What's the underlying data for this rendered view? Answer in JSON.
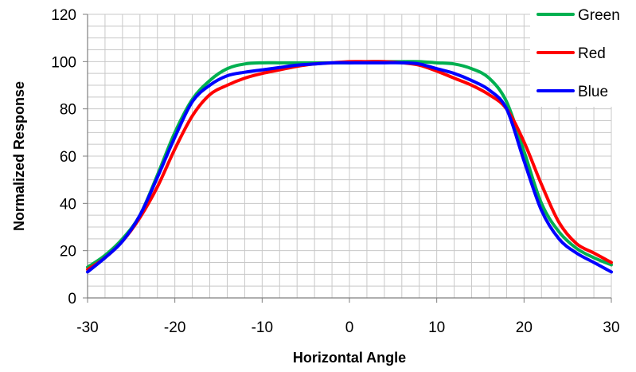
{
  "chart_data": {
    "type": "line",
    "title": "",
    "xlabel": "Horizontal Angle",
    "ylabel": "Normalized Response",
    "xlim": [
      -30,
      30
    ],
    "ylim": [
      0,
      120
    ],
    "xticks": [
      -30,
      -20,
      -10,
      0,
      10,
      20,
      30
    ],
    "yticks": [
      0,
      20,
      40,
      60,
      80,
      100,
      120
    ],
    "grid": true,
    "legend": "top-right",
    "series": [
      {
        "name": "Green",
        "color": "#00b050",
        "x": [
          -30,
          -28,
          -26,
          -24,
          -22,
          -20,
          -18,
          -16,
          -14,
          -12,
          -10,
          -8,
          -6,
          -4,
          -2,
          0,
          2,
          4,
          6,
          8,
          10,
          12,
          14,
          16,
          18,
          20,
          22,
          24,
          26,
          28,
          30
        ],
        "y": [
          13,
          18,
          25,
          35,
          52,
          70,
          84,
          92,
          97,
          99,
          99.5,
          99.5,
          99.5,
          99.5,
          99.5,
          99.5,
          100,
          100,
          100,
          100,
          99.5,
          99,
          97,
          93,
          83,
          62,
          40,
          28,
          21,
          17,
          14
        ]
      },
      {
        "name": "Red",
        "color": "#ff0000",
        "x": [
          -30,
          -28,
          -26,
          -24,
          -22,
          -20,
          -18,
          -16,
          -14,
          -12,
          -10,
          -8,
          -6,
          -4,
          -2,
          0,
          2,
          4,
          6,
          8,
          10,
          12,
          14,
          16,
          18,
          20,
          22,
          24,
          26,
          28,
          30
        ],
        "y": [
          12,
          17,
          24,
          34,
          47,
          63,
          77,
          86,
          90,
          93,
          95,
          96.5,
          98,
          99,
          99.5,
          100,
          100,
          100,
          99.5,
          98.5,
          96,
          93,
          90,
          86,
          80,
          66,
          48,
          32,
          23,
          19,
          15
        ]
      },
      {
        "name": "Blue",
        "color": "#0000ff",
        "x": [
          -30,
          -28,
          -26,
          -24,
          -22,
          -20,
          -18,
          -16,
          -14,
          -12,
          -10,
          -8,
          -6,
          -4,
          -2,
          0,
          2,
          4,
          6,
          8,
          10,
          12,
          14,
          16,
          18,
          20,
          22,
          24,
          26,
          28,
          30
        ],
        "y": [
          11,
          17,
          24,
          35,
          51,
          68,
          83,
          90,
          94,
          95.5,
          96.5,
          97.5,
          98.5,
          99,
          99.5,
          99.5,
          99.5,
          99.5,
          99.5,
          99,
          97,
          95,
          92,
          88,
          80,
          58,
          37,
          25,
          19,
          15,
          11
        ]
      }
    ]
  }
}
